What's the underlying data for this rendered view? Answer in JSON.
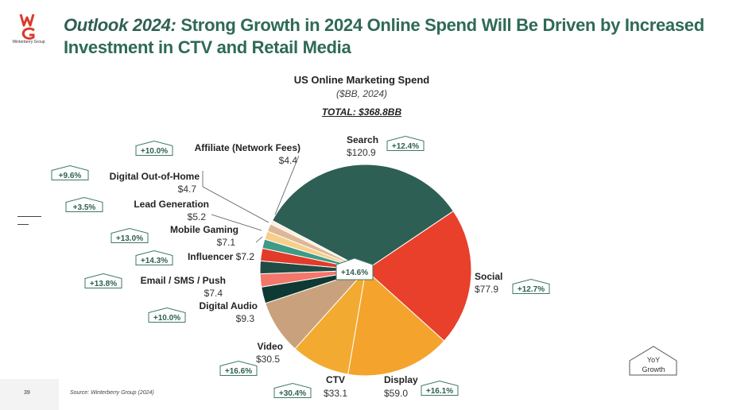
{
  "slide": {
    "logo_text": "Winterberry Group",
    "headline_lead": "Outlook 2024:",
    "headline_rest": " Strong Growth in 2024 Online Spend Will Be Driven by Increased Investment in CTV and Retail Media",
    "page_number": "39",
    "source": "Source: Winterberry Group (2024)"
  },
  "colors": {
    "brand_red": "#d93b2b",
    "headline_green": "#2e6a55",
    "badge_border": "#3c7a63"
  },
  "chart_data": {
    "type": "pie",
    "title": "US Online Marketing Spend",
    "subtitle": "($BB, 2024)",
    "total": "TOTAL: $368.8BB",
    "center_label": "+14.6%",
    "legend_key": [
      "YoY",
      "Growth"
    ],
    "slices": [
      {
        "name": "Search",
        "value": 120.9,
        "value_label": "$120.9",
        "growth": "+12.4%",
        "color": "#2d5f55"
      },
      {
        "name": "Social",
        "value": 77.9,
        "value_label": "$77.9",
        "growth": "+12.7%",
        "color": "#e8402b"
      },
      {
        "name": "Display",
        "value": 59.0,
        "value_label": "$59.0",
        "growth": "+16.1%",
        "color": "#f4a42c"
      },
      {
        "name": "CTV",
        "value": 33.1,
        "value_label": "$33.1",
        "growth": "+30.4%",
        "color": "#f3aa30"
      },
      {
        "name": "Video",
        "value": 30.5,
        "value_label": "$30.5",
        "growth": "+16.6%",
        "color": "#c9a17c"
      },
      {
        "name": "Digital Audio",
        "value": 9.3,
        "value_label": "$9.3",
        "growth": "+10.0%",
        "color": "#0f3a34"
      },
      {
        "name": "Email / SMS / Push",
        "value": 7.4,
        "value_label": "$7.4",
        "growth": "+13.8%",
        "color": "#f3776a"
      },
      {
        "name": "Influencer",
        "value": 7.2,
        "value_label": "$7.2",
        "growth": "+14.3%",
        "color": "#204c44"
      },
      {
        "name": "Mobile Gaming",
        "value": 7.1,
        "value_label": "$7.1",
        "growth": "+13.0%",
        "color": "#e23b2a"
      },
      {
        "name": "Lead Generation",
        "value": 5.2,
        "value_label": "$5.2",
        "growth": "+3.5%",
        "color": "#3f9a86"
      },
      {
        "name": "Digital Out-of-Home",
        "value": 4.7,
        "value_label": "$4.7",
        "growth": "+9.6%",
        "color": "#f7cf8a"
      },
      {
        "name": "Affiliate (Network Fees)",
        "value": 4.4,
        "value_label": "$4.4",
        "growth": "+10.0%",
        "color": "#ddb896"
      }
    ],
    "remainder_color": "#fbeedd"
  }
}
